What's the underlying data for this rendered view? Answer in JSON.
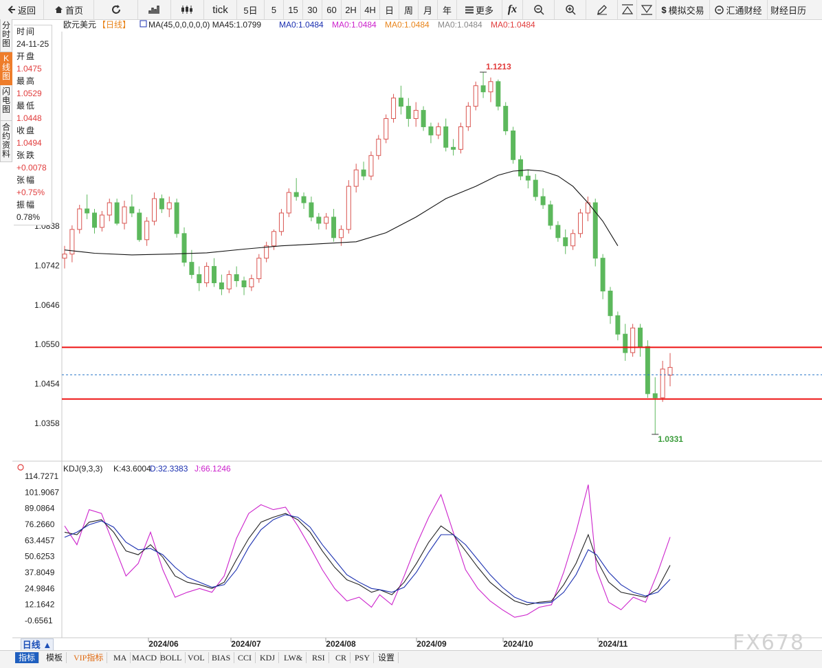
{
  "toolbar": {
    "back": "返回",
    "home": "首页",
    "tick": "tick",
    "periods": [
      "5日",
      "5",
      "15",
      "30",
      "60",
      "2H",
      "4H",
      "日",
      "周",
      "月",
      "年"
    ],
    "more": "更多",
    "fx": "fx",
    "sim_trade": "模拟交易",
    "huitong": "汇通财经",
    "caijing": "财经日历"
  },
  "side_tabs": [
    {
      "label": "分时图",
      "active": false
    },
    {
      "label": "K线图",
      "active": true
    },
    {
      "label": "闪电图",
      "active": false
    },
    {
      "label": "合约资料",
      "active": false
    }
  ],
  "info": {
    "time_label": "时间",
    "time": "24-11-25",
    "open_label": "开盘",
    "open": "1.0475",
    "high_label": "最高",
    "high": "1.0529",
    "low_label": "最低",
    "low": "1.0448",
    "close_label": "收盘",
    "close": "1.0494",
    "change_label": "张跌",
    "change": "+0.0078",
    "pct_label": "张幅",
    "pct": "+0.75%",
    "amp_label": "振幅",
    "amp": "0.78%"
  },
  "legend": {
    "symbol": "欧元美元",
    "period": "【日线】",
    "items": [
      {
        "text": "MA(45,0,0,0,0,0)  MA45:1.0799",
        "color": "#222222"
      },
      {
        "text": "MA0:1.0484",
        "color": "#1a2fb0"
      },
      {
        "text": "MA0:1.0484",
        "color": "#cc22cc"
      },
      {
        "text": "MA0:1.0484",
        "color": "#e8841a"
      },
      {
        "text": "MA0:1.0484",
        "color": "#888888"
      },
      {
        "text": "MA0:1.0484",
        "color": "#e13c3c"
      }
    ]
  },
  "kdj_legend": {
    "name": "KDJ(9,3,3)",
    "k": "K:43.6004",
    "d": "D:32.3383",
    "j": "J:66.1246"
  },
  "price_axis": [
    "1.0838",
    "1.0742",
    "1.0646",
    "1.0550",
    "1.0454",
    "1.0358"
  ],
  "kdj_axis": [
    "114.7271",
    "101.9067",
    "89.0864",
    "76.2660",
    "63.4457",
    "50.6253",
    "37.8049",
    "24.9846",
    "12.1642",
    "-0.6561"
  ],
  "x_axis": [
    "2024/06",
    "2024/07",
    "2024/08",
    "2024/09",
    "2024/10",
    "2024/11"
  ],
  "markers": {
    "high": "1.1213",
    "low": "1.0331"
  },
  "bottom": {
    "period_button": "日线 ▲",
    "tabs": [
      "指标",
      "模板",
      "VIP指标",
      "MA",
      "MACD",
      "BOLL",
      "VOL",
      "BIAS",
      "CCI",
      "KDJ",
      "LW&",
      "RSI",
      "CR",
      "PSY",
      "设置"
    ]
  },
  "watermark": "FX678",
  "colors": {
    "up": "#d9534f",
    "down": "#5cb85c",
    "ma": "#111111",
    "level": "#ee1111",
    "current": "#2a77c9",
    "k": "#222222",
    "d": "#1a2fb0",
    "j": "#cc22cc"
  },
  "chart_data": {
    "type": "candlestick",
    "symbol": "EUR/USD",
    "period": "daily",
    "ylim": [
      1.031,
      1.125
    ],
    "ohlc": [
      [
        1.076,
        1.079,
        1.0735,
        1.077
      ],
      [
        1.077,
        1.084,
        1.075,
        1.083
      ],
      [
        1.083,
        1.089,
        1.082,
        1.088
      ],
      [
        1.088,
        1.0915,
        1.0855,
        1.087
      ],
      [
        1.087,
        1.088,
        1.082,
        1.0835
      ],
      [
        1.0835,
        1.0875,
        1.0825,
        1.0865
      ],
      [
        1.0865,
        1.0905,
        1.085,
        1.0895
      ],
      [
        1.0895,
        1.0905,
        1.084,
        1.0845
      ],
      [
        1.0845,
        1.09,
        1.083,
        1.0885
      ],
      [
        1.0885,
        1.0915,
        1.086,
        1.087
      ],
      [
        1.087,
        1.088,
        1.08,
        1.0805
      ],
      [
        1.0805,
        1.086,
        1.079,
        1.085
      ],
      [
        1.085,
        1.092,
        1.084,
        1.0905
      ],
      [
        1.0905,
        1.0915,
        1.087,
        1.088
      ],
      [
        1.088,
        1.091,
        1.086,
        1.0895
      ],
      [
        1.0895,
        1.0905,
        1.081,
        1.082
      ],
      [
        1.082,
        1.0835,
        1.074,
        1.075
      ],
      [
        1.075,
        1.078,
        1.071,
        1.072
      ],
      [
        1.072,
        1.074,
        1.068,
        1.07
      ],
      [
        1.07,
        1.075,
        1.069,
        1.074
      ],
      [
        1.074,
        1.076,
        1.069,
        1.07
      ],
      [
        1.07,
        1.072,
        1.067,
        1.0685
      ],
      [
        1.0685,
        1.073,
        1.0675,
        1.072
      ],
      [
        1.072,
        1.074,
        1.069,
        1.0705
      ],
      [
        1.0705,
        1.0715,
        1.067,
        1.069
      ],
      [
        1.069,
        1.072,
        1.068,
        1.071
      ],
      [
        1.071,
        1.077,
        1.07,
        1.076
      ],
      [
        1.076,
        1.08,
        1.075,
        1.079
      ],
      [
        1.079,
        1.083,
        1.078,
        1.0825
      ],
      [
        1.0825,
        1.088,
        1.0815,
        1.087
      ],
      [
        1.087,
        1.093,
        1.086,
        1.092
      ],
      [
        1.092,
        1.0955,
        1.09,
        1.091
      ],
      [
        1.091,
        1.092,
        1.088,
        1.0895
      ],
      [
        1.0895,
        1.091,
        1.085,
        1.086
      ],
      [
        1.086,
        1.087,
        1.083,
        1.0845
      ],
      [
        1.0845,
        1.087,
        1.083,
        1.086
      ],
      [
        1.086,
        1.088,
        1.08,
        1.081
      ],
      [
        1.081,
        1.084,
        1.079,
        1.083
      ],
      [
        1.083,
        1.095,
        1.082,
        1.0935
      ],
      [
        1.0935,
        1.099,
        1.092,
        1.0975
      ],
      [
        1.0975,
        1.0995,
        1.095,
        1.096
      ],
      [
        1.096,
        1.102,
        1.095,
        1.101
      ],
      [
        1.101,
        1.106,
        1.1,
        1.105
      ],
      [
        1.105,
        1.111,
        1.104,
        1.11
      ],
      [
        1.11,
        1.116,
        1.109,
        1.115
      ],
      [
        1.115,
        1.118,
        1.111,
        1.113
      ],
      [
        1.113,
        1.115,
        1.108,
        1.11
      ],
      [
        1.11,
        1.114,
        1.108,
        1.112
      ],
      [
        1.112,
        1.113,
        1.107,
        1.108
      ],
      [
        1.108,
        1.109,
        1.104,
        1.106
      ],
      [
        1.106,
        1.109,
        1.105,
        1.108
      ],
      [
        1.108,
        1.11,
        1.102,
        1.103
      ],
      [
        1.103,
        1.105,
        1.101,
        1.1025
      ],
      [
        1.1025,
        1.109,
        1.1015,
        1.108
      ],
      [
        1.108,
        1.114,
        1.107,
        1.113
      ],
      [
        1.113,
        1.119,
        1.112,
        1.118
      ],
      [
        1.118,
        1.1213,
        1.115,
        1.1165
      ],
      [
        1.1165,
        1.12,
        1.114,
        1.119
      ],
      [
        1.119,
        1.1195,
        1.112,
        1.113
      ],
      [
        1.113,
        1.114,
        1.106,
        1.107
      ],
      [
        1.107,
        1.108,
        1.099,
        1.1
      ],
      [
        1.1,
        1.101,
        1.095,
        1.096
      ],
      [
        1.096,
        1.0975,
        1.093,
        1.095
      ],
      [
        1.095,
        1.0965,
        1.09,
        1.091
      ],
      [
        1.091,
        1.093,
        1.088,
        1.089
      ],
      [
        1.089,
        1.09,
        1.083,
        1.084
      ],
      [
        1.084,
        1.085,
        1.08,
        1.081
      ],
      [
        1.081,
        1.083,
        1.077,
        1.079
      ],
      [
        1.079,
        1.083,
        1.078,
        1.082
      ],
      [
        1.082,
        1.088,
        1.081,
        1.087
      ],
      [
        1.087,
        1.091,
        1.085,
        1.0895
      ],
      [
        1.0895,
        1.0905,
        1.074,
        1.076
      ],
      [
        1.076,
        1.077,
        1.066,
        1.068
      ],
      [
        1.068,
        1.069,
        1.06,
        1.062
      ],
      [
        1.062,
        1.063,
        1.056,
        1.0575
      ],
      [
        1.0575,
        1.06,
        1.051,
        1.053
      ],
      [
        1.053,
        1.06,
        1.052,
        1.059
      ],
      [
        1.059,
        1.06,
        1.052,
        1.0545
      ],
      [
        1.0545,
        1.056,
        1.042,
        1.043
      ],
      [
        1.043,
        1.047,
        1.0331,
        1.042
      ],
      [
        1.042,
        1.051,
        1.041,
        1.049
      ],
      [
        1.0475,
        1.0529,
        1.0448,
        1.0494
      ]
    ],
    "ma45": [
      [
        0,
        1.078
      ],
      [
        4,
        1.0772
      ],
      [
        9,
        1.0768
      ],
      [
        14,
        1.077
      ],
      [
        19,
        1.0773
      ],
      [
        24,
        1.0782
      ],
      [
        29,
        1.079
      ],
      [
        34,
        1.0795
      ],
      [
        39,
        1.08
      ],
      [
        43,
        1.0822
      ],
      [
        47,
        1.086
      ],
      [
        51,
        1.0905
      ],
      [
        55,
        1.0935
      ],
      [
        58,
        1.0962
      ],
      [
        60,
        1.0972
      ],
      [
        62,
        1.0975
      ],
      [
        64,
        1.0972
      ],
      [
        66,
        1.096
      ],
      [
        68,
        1.0935
      ],
      [
        70,
        1.0895
      ],
      [
        72,
        1.085
      ],
      [
        74,
        1.079
      ]
    ],
    "levels": [
      1.0543,
      1.0417
    ],
    "current_price": 1.0476,
    "kdj": {
      "k": [
        [
          0,
          70
        ],
        [
          3,
          68
        ],
        [
          6,
          78
        ],
        [
          9,
          80
        ],
        [
          12,
          70
        ],
        [
          15,
          55
        ],
        [
          18,
          52
        ],
        [
          21,
          60
        ],
        [
          24,
          50
        ],
        [
          27,
          35
        ],
        [
          30,
          30
        ],
        [
          33,
          28
        ],
        [
          36,
          25
        ],
        [
          39,
          30
        ],
        [
          42,
          48
        ],
        [
          45,
          65
        ],
        [
          48,
          78
        ],
        [
          51,
          82
        ],
        [
          54,
          85
        ],
        [
          57,
          80
        ],
        [
          60,
          70
        ],
        [
          63,
          55
        ],
        [
          66,
          42
        ],
        [
          69,
          32
        ],
        [
          72,
          28
        ],
        [
          75,
          22
        ],
        [
          77,
          24
        ],
        [
          80,
          20
        ],
        [
          83,
          30
        ],
        [
          86,
          45
        ],
        [
          89,
          62
        ],
        [
          92,
          75
        ],
        [
          95,
          68
        ],
        [
          98,
          55
        ],
        [
          101,
          42
        ],
        [
          104,
          30
        ],
        [
          107,
          22
        ],
        [
          110,
          15
        ],
        [
          113,
          12
        ],
        [
          116,
          14
        ],
        [
          119,
          15
        ],
        [
          122,
          28
        ],
        [
          125,
          45
        ],
        [
          128,
          68
        ],
        [
          130,
          48
        ],
        [
          133,
          30
        ],
        [
          136,
          22
        ],
        [
          139,
          20
        ],
        [
          142,
          18
        ],
        [
          145,
          25
        ],
        [
          148,
          43.6
        ]
      ],
      "d": [
        [
          0,
          66
        ],
        [
          3,
          70
        ],
        [
          6,
          76
        ],
        [
          9,
          79
        ],
        [
          12,
          74
        ],
        [
          15,
          62
        ],
        [
          18,
          56
        ],
        [
          21,
          57
        ],
        [
          24,
          52
        ],
        [
          27,
          42
        ],
        [
          30,
          34
        ],
        [
          33,
          30
        ],
        [
          36,
          26
        ],
        [
          39,
          28
        ],
        [
          42,
          40
        ],
        [
          45,
          58
        ],
        [
          48,
          72
        ],
        [
          51,
          80
        ],
        [
          54,
          84
        ],
        [
          57,
          82
        ],
        [
          60,
          74
        ],
        [
          63,
          60
        ],
        [
          66,
          48
        ],
        [
          69,
          36
        ],
        [
          72,
          30
        ],
        [
          75,
          25
        ],
        [
          77,
          24
        ],
        [
          80,
          22
        ],
        [
          83,
          26
        ],
        [
          86,
          38
        ],
        [
          89,
          54
        ],
        [
          92,
          68
        ],
        [
          95,
          68
        ],
        [
          98,
          60
        ],
        [
          101,
          48
        ],
        [
          104,
          36
        ],
        [
          107,
          26
        ],
        [
          110,
          18
        ],
        [
          113,
          14
        ],
        [
          116,
          13
        ],
        [
          119,
          14
        ],
        [
          122,
          22
        ],
        [
          125,
          36
        ],
        [
          128,
          56
        ],
        [
          130,
          52
        ],
        [
          133,
          38
        ],
        [
          136,
          28
        ],
        [
          139,
          22
        ],
        [
          142,
          19
        ],
        [
          145,
          22
        ],
        [
          148,
          32.3
        ]
      ],
      "j": [
        [
          0,
          75
        ],
        [
          3,
          60
        ],
        [
          6,
          88
        ],
        [
          9,
          85
        ],
        [
          12,
          60
        ],
        [
          15,
          35
        ],
        [
          18,
          45
        ],
        [
          21,
          70
        ],
        [
          24,
          40
        ],
        [
          27,
          18
        ],
        [
          30,
          22
        ],
        [
          33,
          25
        ],
        [
          36,
          22
        ],
        [
          39,
          35
        ],
        [
          42,
          65
        ],
        [
          45,
          85
        ],
        [
          48,
          92
        ],
        [
          51,
          88
        ],
        [
          54,
          90
        ],
        [
          57,
          75
        ],
        [
          60,
          58
        ],
        [
          63,
          40
        ],
        [
          66,
          25
        ],
        [
          69,
          15
        ],
        [
          72,
          18
        ],
        [
          75,
          10
        ],
        [
          77,
          20
        ],
        [
          80,
          12
        ],
        [
          83,
          35
        ],
        [
          86,
          60
        ],
        [
          89,
          82
        ],
        [
          92,
          100
        ],
        [
          95,
          70
        ],
        [
          98,
          40
        ],
        [
          101,
          25
        ],
        [
          104,
          15
        ],
        [
          107,
          8
        ],
        [
          110,
          2
        ],
        [
          113,
          4
        ],
        [
          116,
          10
        ],
        [
          119,
          12
        ],
        [
          122,
          38
        ],
        [
          125,
          70
        ],
        [
          128,
          108
        ],
        [
          130,
          40
        ],
        [
          133,
          14
        ],
        [
          136,
          8
        ],
        [
          139,
          18
        ],
        [
          142,
          14
        ],
        [
          145,
          38
        ],
        [
          148,
          66.1
        ]
      ]
    },
    "x_ticks": [
      "2024/06",
      "2024/07",
      "2024/08",
      "2024/09",
      "2024/10",
      "2024/11"
    ],
    "y_ticks": [
      "1.0838",
      "1.0742",
      "1.0646",
      "1.0550",
      "1.0454",
      "1.0358"
    ],
    "kdj_ticks": [
      "114.7271",
      "101.9067",
      "89.0864",
      "76.2660",
      "63.4457",
      "50.6253",
      "37.8049",
      "24.9846",
      "12.1642",
      "-0.6561"
    ]
  }
}
